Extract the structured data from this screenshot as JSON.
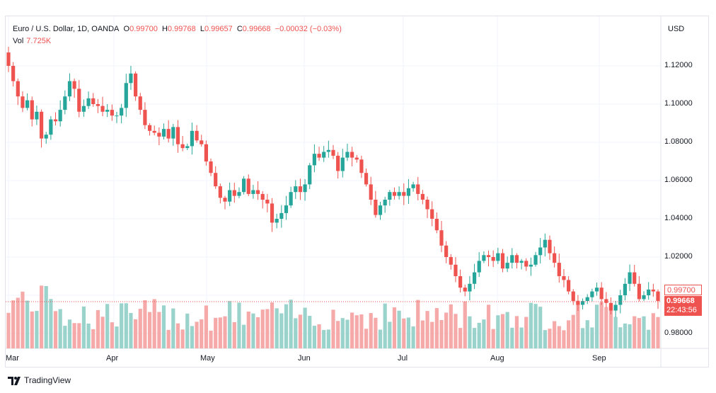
{
  "header": {
    "symbol": "Euro / U.S. Dollar, 1D, OANDA",
    "open_label": "O",
    "open": "0.99700",
    "high_label": "H",
    "high": "0.99768",
    "low_label": "L",
    "low": "0.99657",
    "close_label": "C",
    "close": "0.99668",
    "change": "−0.00032 (−0.03%)",
    "vol_label": "Vol",
    "vol": "7.725K"
  },
  "axis": {
    "currency": "USD",
    "price_ticks": [
      "1.12000",
      "1.10000",
      "1.08000",
      "1.06000",
      "1.04000",
      "1.02000",
      "0.98000"
    ],
    "months": [
      "Mar",
      "Apr",
      "May",
      "Jun",
      "Jul",
      "Aug",
      "Sep"
    ]
  },
  "tags": {
    "high": "0.99700",
    "close": "0.99668",
    "countdown": "22:43:56"
  },
  "branding": {
    "name": "TradingView",
    "logo": "tradingview-logo"
  },
  "colors": {
    "up": "#26a69a",
    "down": "#ef5350",
    "up_vol": "#9ad2cc",
    "down_vol": "#f5a9a8",
    "grid": "#f0f3fa"
  },
  "chart_data": {
    "type": "candlestick",
    "title": "Euro / U.S. Dollar, 1D, OANDA",
    "ylabel": "USD",
    "ylim": [
      0.972,
      1.134
    ],
    "close_series": [
      1.12,
      1.112,
      1.104,
      1.098,
      1.102,
      1.092,
      1.096,
      1.082,
      1.084,
      1.092,
      1.091,
      1.097,
      1.104,
      1.112,
      1.108,
      1.096,
      1.099,
      1.103,
      1.1,
      1.099,
      1.096,
      1.097,
      1.094,
      1.094,
      1.098,
      1.111,
      1.116,
      1.104,
      1.097,
      1.089,
      1.086,
      1.085,
      1.083,
      1.087,
      1.082,
      1.088,
      1.079,
      1.077,
      1.078,
      1.086,
      1.081,
      1.079,
      1.07,
      1.064,
      1.057,
      1.051,
      1.049,
      1.055,
      1.052,
      1.054,
      1.061,
      1.053,
      1.055,
      1.053,
      1.05,
      1.048,
      1.038,
      1.04,
      1.043,
      1.047,
      1.054,
      1.057,
      1.054,
      1.058,
      1.068,
      1.074,
      1.072,
      1.075,
      1.076,
      1.073,
      1.065,
      1.072,
      1.075,
      1.072,
      1.071,
      1.064,
      1.058,
      1.05,
      1.042,
      1.047,
      1.05,
      1.054,
      1.052,
      1.054,
      1.052,
      1.056,
      1.058,
      1.053,
      1.05,
      1.045,
      1.04,
      1.034,
      1.026,
      1.02,
      1.016,
      1.01,
      1.004,
      1.002,
      1.006,
      1.012,
      1.018,
      1.021,
      1.02,
      1.018,
      1.022,
      1.014,
      1.017,
      1.021,
      1.017,
      1.018,
      1.015,
      1.016,
      1.021,
      1.025,
      1.029,
      1.022,
      1.017,
      1.01,
      1.008,
      1.002,
      0.997,
      0.995,
      0.997,
      0.999,
      1.002,
      1.004,
      0.998,
      0.996,
      0.992,
      0.995,
      1.0,
      1.006,
      1.012,
      1.006,
      0.998,
      1.0,
      1.003,
      1.002,
      0.997
    ],
    "volume_note": "volume bars scaled relative, max ≈ 15K"
  }
}
